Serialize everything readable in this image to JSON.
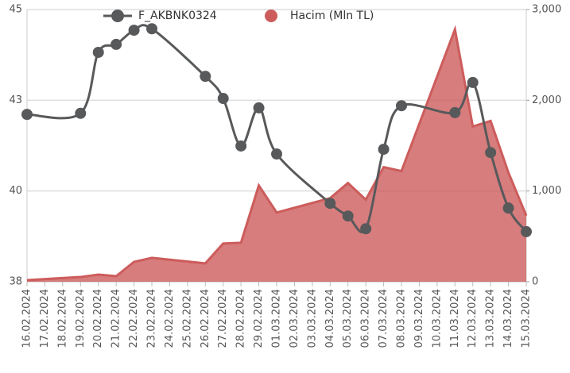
{
  "chart_data": {
    "type": "line",
    "categories": [
      "16.02.2024",
      "17.02.2024",
      "18.02.2024",
      "19.02.2024",
      "20.02.2024",
      "21.02.2024",
      "22.02.2024",
      "23.02.2024",
      "24.02.2024",
      "25.02.2024",
      "26.02.2024",
      "27.02.2024",
      "28.02.2024",
      "29.02.2024",
      "01.03.2024",
      "02.03.2024",
      "03.03.2024",
      "04.03.2024",
      "05.03.2024",
      "06.03.2024",
      "07.03.2024",
      "08.03.2024",
      "09.03.2024",
      "10.03.2024",
      "11.03.2024",
      "12.03.2024",
      "13.03.2024",
      "14.03.2024",
      "15.03.2024"
    ],
    "x": [
      "16.02.2024",
      "19.02.2024",
      "20.02.2024",
      "21.02.2024",
      "22.02.2024",
      "23.02.2024",
      "26.02.2024",
      "27.02.2024",
      "28.02.2024",
      "29.02.2024",
      "01.03.2024",
      "04.03.2024",
      "05.03.2024",
      "06.03.2024",
      "07.03.2024",
      "08.03.2024",
      "11.03.2024",
      "12.03.2024",
      "13.03.2024",
      "14.03.2024",
      "15.03.2024"
    ],
    "series": [
      {
        "name": "F_AKBNK0324",
        "color": "#58595b",
        "values": [
          42.11,
          42.14,
          43.82,
          44.04,
          44.43,
          44.47,
          43.16,
          42.55,
          41.24,
          42.29,
          41.02,
          39.66,
          39.31,
          38.96,
          41.15,
          42.35,
          42.16,
          42.99,
          41.06,
          39.53,
          38.88
        ]
      },
      {
        "name": "Hacim (Mln TL)",
        "color": "#cd5c5c",
        "axis": "y2",
        "values": [
          17,
          52,
          79,
          61,
          219,
          263,
          202,
          421,
          430,
          1061,
          763,
          921,
          1088,
          904,
          1263,
          1219,
          2781,
          1711,
          1772,
          1202,
          728
        ]
      }
    ],
    "ylim": [
      37.5,
      45
    ],
    "yticks": [
      {
        "value": 37.5,
        "label": "38"
      },
      40,
      {
        "value": 42.5,
        "label": "43"
      },
      45
    ],
    "y2lim": [
      0,
      3000
    ],
    "y2ticks": [
      0,
      {
        "value": 1000,
        "label": "1,000"
      },
      {
        "value": 2000,
        "label": "2,000"
      },
      {
        "value": 3000,
        "label": "3,000"
      }
    ],
    "grid": true,
    "legend": "top"
  }
}
